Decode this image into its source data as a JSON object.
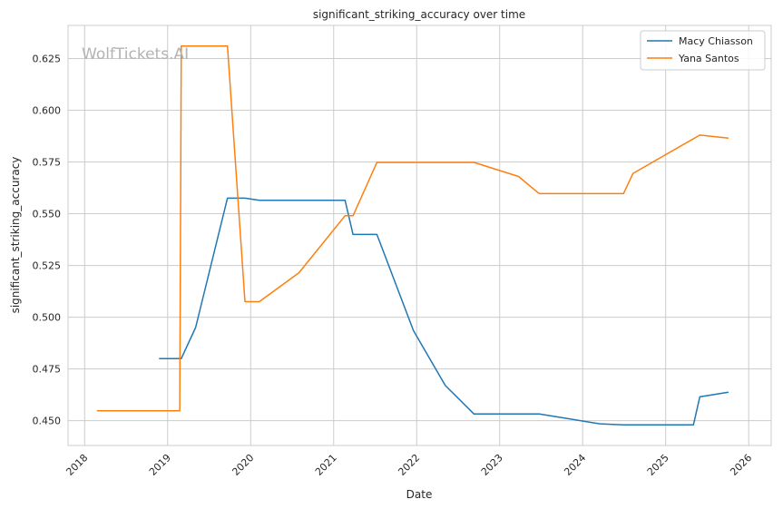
{
  "chart_data": {
    "type": "line",
    "title": "significant_striking_accuracy over time",
    "xlabel": "Date",
    "ylabel": "significant_striking_accuracy",
    "watermark": "WolfTickets.AI",
    "xlim": [
      "2017-10-20",
      "2026-04-10"
    ],
    "ylim": [
      0.438,
      0.641
    ],
    "x_ticks": [
      "2018",
      "2019",
      "2020",
      "2021",
      "2022",
      "2023",
      "2024",
      "2025",
      "2026"
    ],
    "y_ticks": [
      "0.450",
      "0.475",
      "0.500",
      "0.525",
      "0.550",
      "0.575",
      "0.600",
      "0.625"
    ],
    "grid": true,
    "legend_position": "top-right",
    "series": [
      {
        "name": "Macy Chiasson",
        "color": "#1f77b4",
        "points": [
          {
            "x": "2018-11-24",
            "y": 0.48
          },
          {
            "x": "2019-03-02",
            "y": 0.48
          },
          {
            "x": "2019-05-04",
            "y": 0.495
          },
          {
            "x": "2019-09-21",
            "y": 0.5575
          },
          {
            "x": "2019-12-07",
            "y": 0.5575
          },
          {
            "x": "2020-02-08",
            "y": 0.5565
          },
          {
            "x": "2021-02-20",
            "y": 0.5565
          },
          {
            "x": "2021-03-27",
            "y": 0.54
          },
          {
            "x": "2021-07-10",
            "y": 0.54
          },
          {
            "x": "2021-12-18",
            "y": 0.4935
          },
          {
            "x": "2022-05-07",
            "y": 0.467
          },
          {
            "x": "2022-09-10",
            "y": 0.4532
          },
          {
            "x": "2023-06-24",
            "y": 0.4532
          },
          {
            "x": "2024-03-16",
            "y": 0.4485
          },
          {
            "x": "2024-06-29",
            "y": 0.448
          },
          {
            "x": "2025-05-03",
            "y": 0.448
          },
          {
            "x": "2025-05-31",
            "y": 0.4615
          },
          {
            "x": "2025-10-04",
            "y": 0.4638
          }
        ]
      },
      {
        "name": "Yana Santos",
        "color": "#ff7f0e",
        "points": [
          {
            "x": "2018-02-24",
            "y": 0.4548
          },
          {
            "x": "2019-02-23",
            "y": 0.4548
          },
          {
            "x": "2019-03-02",
            "y": 0.631
          },
          {
            "x": "2019-09-21",
            "y": 0.631
          },
          {
            "x": "2019-12-07",
            "y": 0.5075
          },
          {
            "x": "2020-02-08",
            "y": 0.5075
          },
          {
            "x": "2020-08-01",
            "y": 0.5215
          },
          {
            "x": "2021-02-20",
            "y": 0.549
          },
          {
            "x": "2021-03-27",
            "y": 0.549
          },
          {
            "x": "2021-07-10",
            "y": 0.5748
          },
          {
            "x": "2022-09-10",
            "y": 0.5748
          },
          {
            "x": "2023-03-25",
            "y": 0.568
          },
          {
            "x": "2023-06-24",
            "y": 0.5597
          },
          {
            "x": "2024-06-29",
            "y": 0.5597
          },
          {
            "x": "2024-08-10",
            "y": 0.5695
          },
          {
            "x": "2025-05-31",
            "y": 0.588
          },
          {
            "x": "2025-10-04",
            "y": 0.5865
          }
        ]
      }
    ]
  }
}
